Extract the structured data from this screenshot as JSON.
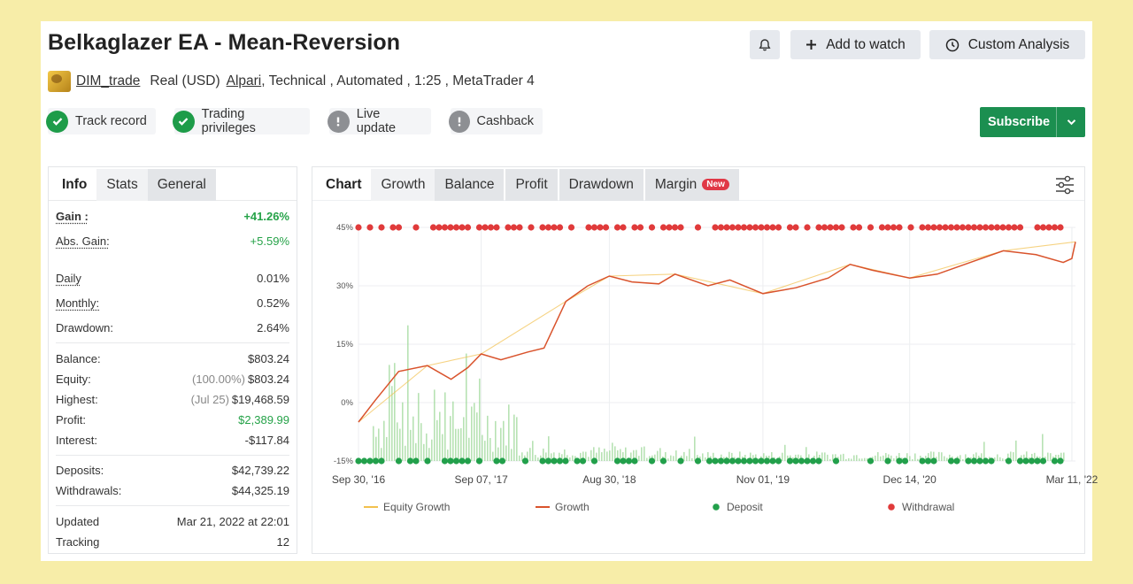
{
  "header": {
    "title": "Belkaglazer EA - Mean-Reversion",
    "bell_icon": "bell-icon",
    "add_to_watch_label": "Add to watch",
    "custom_analysis_label": "Custom Analysis"
  },
  "meta": {
    "author": "DIM_trade",
    "account": "Real (USD)",
    "broker": "Alpari",
    "details": ", Technical , Automated , 1:25 , MetaTrader 4"
  },
  "badges": [
    {
      "label": "Track record",
      "status": "ok"
    },
    {
      "label": "Trading privileges",
      "status": "ok"
    },
    {
      "label": "Live update",
      "status": "unavailable"
    },
    {
      "label": "Cashback",
      "status": "unavailable"
    }
  ],
  "subscribe": {
    "label": "Subscribe"
  },
  "info_panel": {
    "tabs": [
      "Info",
      "Stats",
      "General"
    ],
    "rows": [
      {
        "key": "Gain :",
        "value": "+41.26%"
      },
      {
        "key": "Abs. Gain:",
        "value": "+5.59%"
      },
      {
        "key": "Daily",
        "value": "0.01%"
      },
      {
        "key": "Monthly:",
        "value": "0.52%"
      },
      {
        "key": "Drawdown:",
        "value": "2.64%"
      },
      {
        "key": "Balance:",
        "value": "$803.24"
      },
      {
        "key": "Equity:",
        "prefix": "(100.00%)",
        "value": "$803.24"
      },
      {
        "key": "Highest:",
        "prefix": "(Jul 25)",
        "value": "$19,468.59"
      },
      {
        "key": "Profit:",
        "value": "$2,389.99"
      },
      {
        "key": "Interest:",
        "value": "-$117.84"
      },
      {
        "key": "Deposits:",
        "value": "$42,739.22"
      },
      {
        "key": "Withdrawals:",
        "value": "$44,325.19"
      },
      {
        "key": "Updated",
        "value": "Mar 21, 2022 at 22:01"
      },
      {
        "key": "Tracking",
        "value": "12"
      }
    ]
  },
  "chart_panel": {
    "tabs": [
      "Chart",
      "Growth",
      "Balance",
      "Profit",
      "Drawdown",
      "Margin"
    ],
    "new_badge": "New",
    "settings_icon": "sliders-icon"
  },
  "chart_data": {
    "type": "line",
    "y_ticks": [
      "45%",
      "30%",
      "15%",
      "0%",
      "-15%"
    ],
    "ylim": [
      -15,
      45
    ],
    "x_ticks": [
      "Sep 30, '16",
      "Sep 07, '17",
      "Aug 30, '18",
      "Nov 01, '19",
      "Dec 14, '20",
      "Mar 11, '22"
    ],
    "xlim": [
      "2016-09-30",
      "2022-03-21"
    ],
    "grid": true,
    "legend_position": "bottom",
    "legend": [
      "Equity Growth",
      "Growth",
      "Deposit",
      "Withdrawal"
    ],
    "colors": {
      "equity": "#f2c14e",
      "growth": "#d9532c",
      "deposit": "#22a04b",
      "withdrawal": "#e03a3a",
      "bars": "#9fd89a"
    },
    "series": [
      {
        "name": "Growth",
        "x": [
          "2016-09-30",
          "2016-11-15",
          "2017-01-20",
          "2017-04-10",
          "2017-06-15",
          "2017-08-01",
          "2017-09-07",
          "2017-11-01",
          "2018-01-15",
          "2018-03-01",
          "2018-05-01",
          "2018-07-01",
          "2018-08-30",
          "2018-11-01",
          "2019-01-15",
          "2019-03-01",
          "2019-06-01",
          "2019-08-01",
          "2019-11-01",
          "2020-02-01",
          "2020-05-01",
          "2020-07-01",
          "2020-09-01",
          "2020-12-14",
          "2021-03-01",
          "2021-06-01",
          "2021-09-01",
          "2021-12-01",
          "2022-02-15",
          "2022-03-11",
          "2022-03-21"
        ],
        "values": [
          -5,
          0.5,
          8,
          9.5,
          6,
          9,
          12.5,
          11,
          13,
          14,
          26,
          30,
          32.5,
          31,
          30.5,
          33,
          30,
          31.5,
          28,
          29.5,
          32,
          35.5,
          34,
          32,
          33,
          36,
          39,
          38,
          36,
          37,
          41.3
        ]
      },
      {
        "name": "Equity Growth",
        "x": [
          "2016-09-30",
          "2017-04-10",
          "2017-09-07",
          "2018-05-01",
          "2018-08-30",
          "2019-03-01",
          "2019-11-01",
          "2020-07-01",
          "2020-12-14",
          "2021-09-01",
          "2022-03-21"
        ],
        "values": [
          -5,
          9.5,
          12.5,
          26,
          32.5,
          33,
          28,
          35.5,
          32,
          39,
          41.3
        ]
      }
    ]
  }
}
